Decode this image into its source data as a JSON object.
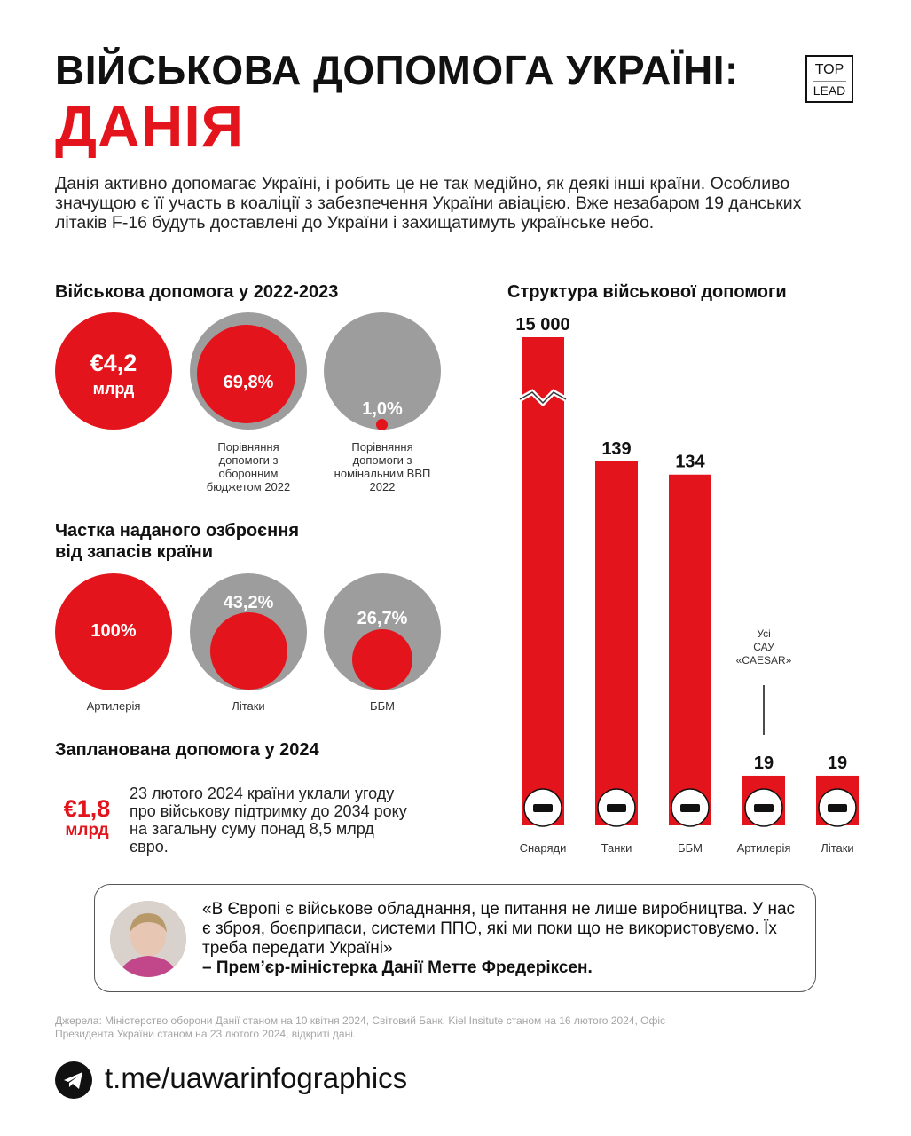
{
  "header": {
    "title_line1": "ВІЙСЬКОВА ДОПОМОГА УКРАЇНІ:",
    "title_line2": "ДАНІЯ",
    "logo_top": "TOP",
    "logo_bottom": "LEAD"
  },
  "intro": "Данія активно допомагає Україні, і робить це не так медійно, як деякі інші країни. Особливо значущою є її участь в коаліції з забезпечення України авіацією. Вже незабаром 19 данських літаків F-16 будуть доставлені до України і захищатимуть українське небо.",
  "aid_2022_2023": {
    "heading": "Військова допомога у 2022-2023",
    "total_value": "€4,2",
    "total_unit": "млрд",
    "budget_share": "69,8%",
    "budget_share_fraction": 0.698,
    "budget_caption": "Порівняння допомоги з оборонним бюджетом 2022",
    "gdp_share": "1,0%",
    "gdp_share_fraction": 0.01,
    "gdp_caption": "Порівняння допомоги з номінальним ВВП 2022"
  },
  "stock_share": {
    "heading_line1": "Частка наданого озброєння",
    "heading_line2": "від запасів країни",
    "items": [
      {
        "value": "100%",
        "fraction": 1.0,
        "label": "Артилерія"
      },
      {
        "value": "43,2%",
        "fraction": 0.432,
        "label": "Літаки"
      },
      {
        "value": "26,7%",
        "fraction": 0.267,
        "label": "ББМ"
      }
    ]
  },
  "planned_2024": {
    "heading": "Запланована допомога у 2024",
    "value": "€1,8",
    "unit": "млрд",
    "text": "23 лютого 2024 країни уклали угоду про військову підтримку до 2034 року на загальну суму понад 8,5 млрд євро."
  },
  "chart_data": {
    "type": "bar",
    "title": "Структура військової допомоги",
    "categories": [
      "Снаряди",
      "Танки",
      "ББМ",
      "Артилерія",
      "Літаки"
    ],
    "values": [
      15000,
      139,
      134,
      19,
      19
    ],
    "value_labels": [
      "15 000",
      "139",
      "134",
      "19",
      "19"
    ],
    "axis_break": "between 139 and 15 000 (first bar truncated)",
    "icons": [
      "shells-icon",
      "tank-icon",
      "apc-icon",
      "artillery-icon",
      "plane-icon"
    ],
    "annotation": {
      "category": "Артилерія",
      "lines": [
        "Усі",
        "САУ",
        "«CAESAR»"
      ]
    },
    "color": "#e3141b"
  },
  "quote": {
    "text": "«В Європі є військове обладнання, це питання не лише виробництва. У нас є зброя, боєприпаси, системи ППО, які ми поки що не використовуємо. Їх треба передати Україні»",
    "author": "– Прем’єр-міністерка Данії Метте Фредеріксен."
  },
  "sources": "Джерела: Міністерство оборони Данії станом на 10 квітня 2024, Світовий Банк, Kiel Insitute станом на 16 лютого 2024, Офіс Президента України станом на 23 лютого 2024, відкриті дані.",
  "footer": {
    "link": "t.me/uawarinfographics"
  },
  "colors": {
    "accent": "#e3141b",
    "grey": "#9d9d9d",
    "text": "#111111"
  }
}
